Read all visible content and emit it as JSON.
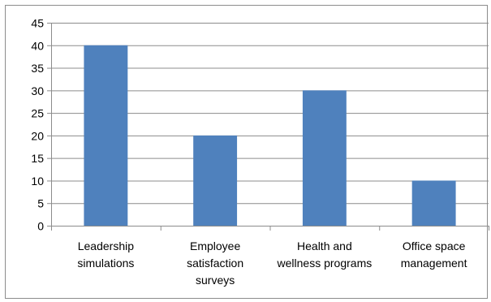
{
  "chart_data": {
    "type": "bar",
    "categories": [
      [
        "Leadership",
        "simulations"
      ],
      [
        "Employee",
        "satisfaction",
        "surveys"
      ],
      [
        "Health and",
        "wellness programs"
      ],
      [
        "Office space",
        "management"
      ]
    ],
    "values": [
      40,
      20,
      30,
      10
    ],
    "ylim": [
      0,
      45
    ],
    "yticks": [
      0,
      5,
      10,
      15,
      20,
      25,
      30,
      35,
      40,
      45
    ],
    "grid": true,
    "bar_color": "#4f81bd",
    "grid_color": "#8c8c8c",
    "title": "",
    "xlabel": "",
    "ylabel": ""
  }
}
